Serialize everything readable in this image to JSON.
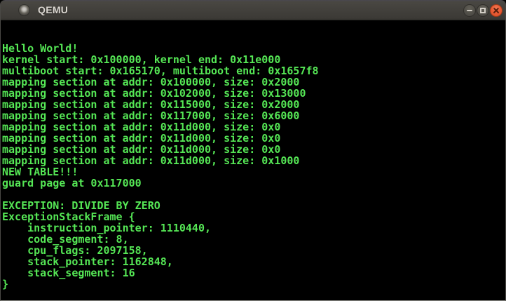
{
  "window": {
    "title": "QEMU",
    "icons": {
      "window_icon": "app-sphere",
      "minimize": "minus",
      "maximize": "square-outline",
      "close": "cross"
    }
  },
  "colors": {
    "terminal_bg": "#000000",
    "terminal_green": "#55e655",
    "titlebar_top": "#4d4b46",
    "titlebar_bottom": "#3c3a36",
    "close_button_orange": "#ea5c36"
  },
  "terminal": {
    "columns": 80,
    "rows": 25,
    "lines": [
      "",
      "",
      "Hello World!",
      "kernel start: 0x100000, kernel end: 0x11e000",
      "multiboot start: 0x165170, multiboot end: 0x1657f8",
      "mapping section at addr: 0x100000, size: 0x2000",
      "mapping section at addr: 0x102000, size: 0x13000",
      "mapping section at addr: 0x115000, size: 0x2000",
      "mapping section at addr: 0x117000, size: 0x6000",
      "mapping section at addr: 0x11d000, size: 0x0",
      "mapping section at addr: 0x11d000, size: 0x0",
      "mapping section at addr: 0x11d000, size: 0x0",
      "mapping section at addr: 0x11d000, size: 0x1000",
      "NEW TABLE!!!",
      "guard page at 0x117000",
      "",
      "EXCEPTION: DIVIDE BY ZERO",
      "ExceptionStackFrame {",
      "    instruction_pointer: 1110440,",
      "    code_segment: 8,",
      "    cpu_flags: 2097158,",
      "    stack_pointer: 1162848,",
      "    stack_segment: 16",
      "}",
      ""
    ]
  }
}
